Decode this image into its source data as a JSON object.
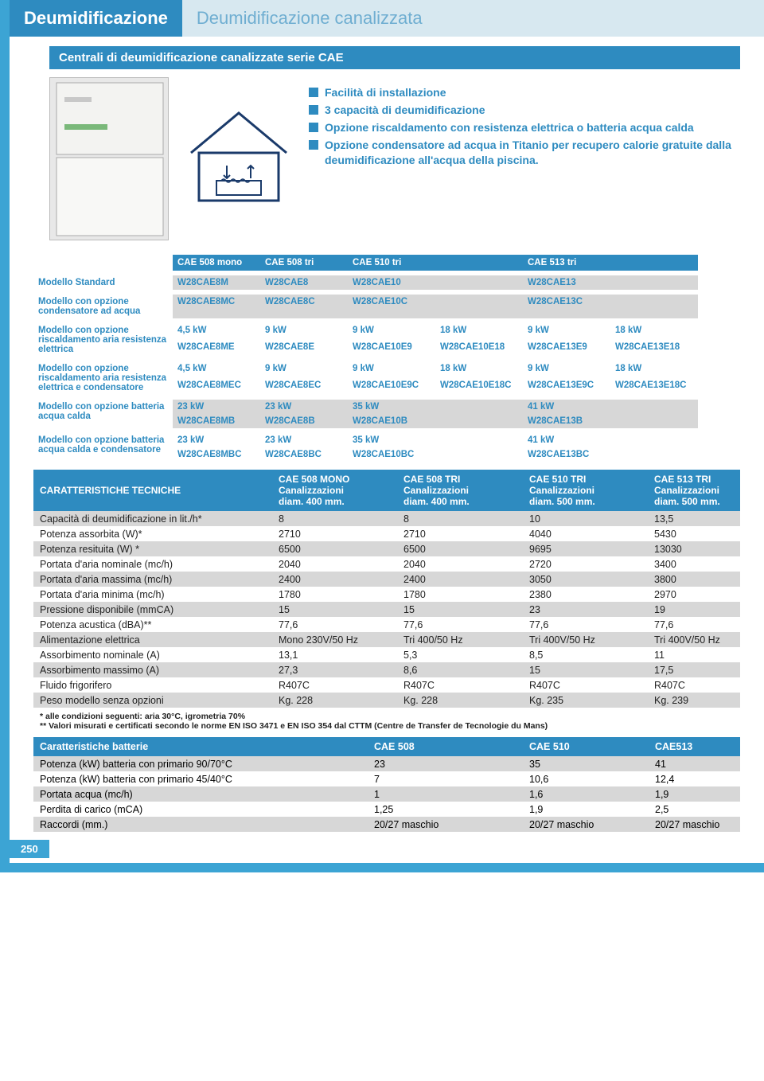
{
  "tabs": {
    "active": "Deumidificazione",
    "inactive": "Deumidificazione canalizzata"
  },
  "subtitle": "Centrali di deumidificazione canalizzate serie CAE",
  "bullets": [
    "Facilità di installazione",
    "3 capacità di deumidificazione",
    "Opzione riscaldamento con resistenza elettrica o batteria acqua calda",
    "Opzione condensatore ad acqua in Titanio per recupero calorie gratuite dalla deumidificazione all'acqua della piscina."
  ],
  "models": {
    "headers": [
      "CAE 508 mono",
      "CAE 508 tri",
      "CAE 510 tri",
      "CAE 513 tri"
    ],
    "rows": [
      {
        "label": "Modello Standard",
        "band": true,
        "cells": [
          "W28CAE8M",
          "W28CAE8",
          "W28CAE10",
          "",
          "W28CAE13",
          ""
        ]
      },
      {
        "label": "Modello con opzione condensatore ad acqua",
        "band": true,
        "cells": [
          "W28CAE8MC",
          "W28CAE8C",
          "W28CAE10C",
          "",
          "W28CAE13C",
          ""
        ]
      },
      {
        "label": "Modello con opzione riscaldamento aria resistenza elettrica",
        "band": false,
        "twoLine": true,
        "line1": [
          "4,5 kW",
          "9 kW",
          "9 kW",
          "18 kW",
          "9 kW",
          "18 kW"
        ],
        "line2": [
          "W28CAE8ME",
          "W28CAE8E",
          "W28CAE10E9",
          "W28CAE10E18",
          "W28CAE13E9",
          "W28CAE13E18"
        ]
      },
      {
        "label": "Modello con opzione riscaldamento aria resistenza elettrica e condensatore",
        "band": false,
        "twoLine": true,
        "line1": [
          "4,5 kW",
          "9 kW",
          "9 kW",
          "18 kW",
          "9 kW",
          "18 kW"
        ],
        "line2": [
          "W28CAE8MEC",
          "W28CAE8EC",
          "W28CAE10E9C",
          "W28CAE10E18C",
          "W28CAE13E9C",
          "W28CAE13E18C"
        ]
      },
      {
        "label": "Modello con opzione batteria acqua calda",
        "band": true,
        "twoLine": true,
        "line1": [
          "23 kW",
          "23 kW",
          "35 kW",
          "",
          "41 kW",
          ""
        ],
        "line2": [
          "W28CAE8MB",
          "W28CAE8B",
          "W28CAE10B",
          "",
          "W28CAE13B",
          ""
        ]
      },
      {
        "label": "Modello con opzione batteria acqua calda e condensatore",
        "band": false,
        "twoLine": true,
        "line1": [
          "23 kW",
          "23 kW",
          "35 kW",
          "",
          "41 kW",
          ""
        ],
        "line2": [
          "W28CAE8MBC",
          "W28CAE8BC",
          "W28CAE10BC",
          "",
          "W28CAE13BC",
          ""
        ]
      }
    ]
  },
  "specHeader": {
    "label": "CARATTERISTICHE TECNICHE",
    "cols": [
      {
        "title": "CAE 508 MONO",
        "sub1": "Canalizzazioni",
        "sub2": "diam. 400 mm."
      },
      {
        "title": "CAE 508 TRI",
        "sub1": "Canalizzazioni",
        "sub2": "diam. 400 mm."
      },
      {
        "title": "CAE 510 TRI",
        "sub1": "Canalizzazioni",
        "sub2": "diam. 500 mm."
      },
      {
        "title": "CAE 513 TRI",
        "sub1": "Canalizzazioni",
        "sub2": "diam. 500 mm."
      }
    ]
  },
  "specRows": [
    {
      "alt": true,
      "label": "Capacità di deumidificazione in lit./h*",
      "v": [
        "8",
        "8",
        "10",
        "13,5"
      ]
    },
    {
      "alt": false,
      "label": "Potenza assorbita (W)*",
      "v": [
        "2710",
        "2710",
        "4040",
        "5430"
      ]
    },
    {
      "alt": true,
      "label": "Potenza resituita (W) *",
      "v": [
        "6500",
        "6500",
        "9695",
        "13030"
      ]
    },
    {
      "alt": false,
      "label": "Portata d'aria nominale (mc/h)",
      "v": [
        "2040",
        "2040",
        "2720",
        "3400"
      ]
    },
    {
      "alt": true,
      "label": "Portata d'aria massima (mc/h)",
      "v": [
        "2400",
        "2400",
        "3050",
        "3800"
      ]
    },
    {
      "alt": false,
      "label": "Portata d'aria minima (mc/h)",
      "v": [
        "1780",
        "1780",
        "2380",
        "2970"
      ]
    },
    {
      "alt": true,
      "label": "Pressione disponibile (mmCA)",
      "v": [
        "15",
        "15",
        "23",
        "19"
      ]
    },
    {
      "alt": false,
      "label": "Potenza acustica (dBA)**",
      "v": [
        "77,6",
        "77,6",
        "77,6",
        "77,6"
      ]
    },
    {
      "alt": true,
      "label": "Alimentazione elettrica",
      "v": [
        "Mono 230V/50 Hz",
        "Tri 400/50 Hz",
        "Tri 400V/50 Hz",
        "Tri 400V/50 Hz"
      ]
    },
    {
      "alt": false,
      "label": "Assorbimento nominale (A)",
      "v": [
        "13,1",
        "5,3",
        "8,5",
        "11"
      ]
    },
    {
      "alt": true,
      "label": "Assorbimento massimo (A)",
      "v": [
        "27,3",
        "8,6",
        "15",
        "17,5"
      ]
    },
    {
      "alt": false,
      "label": "Fluido frigorifero",
      "v": [
        "R407C",
        "R407C",
        "R407C",
        "R407C"
      ]
    },
    {
      "alt": true,
      "label": "Peso modello senza opzioni",
      "v": [
        "Kg. 228",
        "Kg. 228",
        "Kg. 235",
        "Kg. 239"
      ]
    }
  ],
  "footnotes": [
    "*   alle condizioni seguenti: aria 30°C, igrometria 70%",
    "** Valori misurati e certificati secondo le norme EN ISO 3471 e EN ISO 354 dal CTTM (Centre de Transfer de Tecnologie du Mans)"
  ],
  "battHeader": {
    "label": "Caratteristiche batterie",
    "cols": [
      "CAE 508",
      "CAE 510",
      "CAE513"
    ]
  },
  "battRows": [
    {
      "alt": true,
      "label": "Potenza (kW) batteria con primario 90/70°C",
      "v": [
        "23",
        "35",
        "41"
      ]
    },
    {
      "alt": false,
      "label": "Potenza (kW) batteria con primario 45/40°C",
      "v": [
        "7",
        "10,6",
        "12,4"
      ]
    },
    {
      "alt": true,
      "label": "Portata acqua (mc/h)",
      "v": [
        "1",
        "1,6",
        "1,9"
      ]
    },
    {
      "alt": false,
      "label": "Perdita di carico (mCA)",
      "v": [
        "1,25",
        "1,9",
        "2,5"
      ]
    },
    {
      "alt": true,
      "label": "Raccordi (mm.)",
      "v": [
        "20/27 maschio",
        "20/27  maschio",
        "20/27  maschio"
      ]
    }
  ],
  "pageNumber": "250",
  "colors": {
    "primary": "#2e8bc0",
    "border": "#3ca4d4",
    "lightBlue": "#d7e8f0",
    "bandGray": "#d7d7d7"
  }
}
